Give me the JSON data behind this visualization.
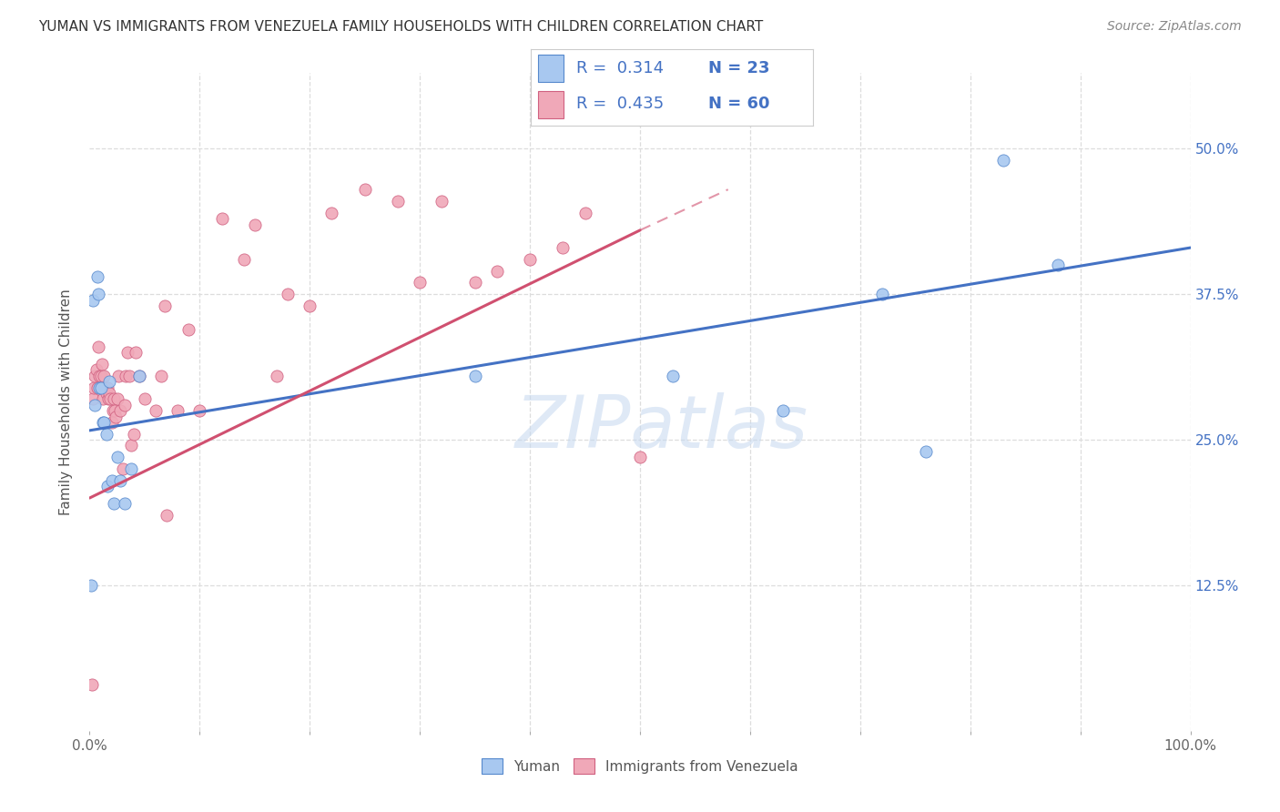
{
  "title": "YUMAN VS IMMIGRANTS FROM VENEZUELA FAMILY HOUSEHOLDS WITH CHILDREN CORRELATION CHART",
  "source": "Source: ZipAtlas.com",
  "ylabel": "Family Households with Children",
  "ytick_values": [
    0.0,
    0.125,
    0.25,
    0.375,
    0.5
  ],
  "ytick_labels_right": [
    "",
    "12.5%",
    "25.0%",
    "37.5%",
    "50.0%"
  ],
  "xlim": [
    0.0,
    1.0
  ],
  "ylim": [
    0.0,
    0.565
  ],
  "color_blue_fill": "#A8C8F0",
  "color_blue_edge": "#5588CC",
  "color_pink_fill": "#F0A8B8",
  "color_pink_edge": "#D06080",
  "color_trendline_blue": "#4472C4",
  "color_trendline_pink": "#D05070",
  "watermark": "ZIPatlas",
  "legend_label_yuman": "Yuman",
  "legend_label_venezuela": "Immigrants from Venezuela",
  "blue_points_x": [
    0.001,
    0.003,
    0.005,
    0.007,
    0.008,
    0.009,
    0.01,
    0.012,
    0.013,
    0.015,
    0.016,
    0.018,
    0.02,
    0.022,
    0.025,
    0.028,
    0.032,
    0.038,
    0.045,
    0.35,
    0.53,
    0.63,
    0.72,
    0.76,
    0.83,
    0.88
  ],
  "blue_points_y": [
    0.125,
    0.37,
    0.28,
    0.39,
    0.375,
    0.295,
    0.295,
    0.265,
    0.265,
    0.255,
    0.21,
    0.3,
    0.215,
    0.195,
    0.235,
    0.215,
    0.195,
    0.225,
    0.305,
    0.305,
    0.305,
    0.275,
    0.375,
    0.24,
    0.49,
    0.4
  ],
  "pink_points_x": [
    0.002,
    0.003,
    0.004,
    0.005,
    0.006,
    0.007,
    0.008,
    0.009,
    0.01,
    0.011,
    0.012,
    0.013,
    0.014,
    0.015,
    0.016,
    0.017,
    0.018,
    0.019,
    0.02,
    0.021,
    0.022,
    0.023,
    0.024,
    0.025,
    0.026,
    0.028,
    0.03,
    0.032,
    0.033,
    0.034,
    0.036,
    0.038,
    0.04,
    0.042,
    0.045,
    0.05,
    0.06,
    0.065,
    0.068,
    0.07,
    0.08,
    0.09,
    0.1,
    0.12,
    0.14,
    0.15,
    0.17,
    0.18,
    0.2,
    0.22,
    0.25,
    0.28,
    0.3,
    0.32,
    0.35,
    0.37,
    0.4,
    0.43,
    0.45,
    0.5
  ],
  "pink_points_y": [
    0.04,
    0.285,
    0.295,
    0.305,
    0.31,
    0.295,
    0.33,
    0.305,
    0.305,
    0.315,
    0.285,
    0.305,
    0.295,
    0.29,
    0.295,
    0.285,
    0.29,
    0.285,
    0.265,
    0.275,
    0.285,
    0.275,
    0.27,
    0.285,
    0.305,
    0.275,
    0.225,
    0.28,
    0.305,
    0.325,
    0.305,
    0.245,
    0.255,
    0.325,
    0.305,
    0.285,
    0.275,
    0.305,
    0.365,
    0.185,
    0.275,
    0.345,
    0.275,
    0.44,
    0.405,
    0.435,
    0.305,
    0.375,
    0.365,
    0.445,
    0.465,
    0.455,
    0.385,
    0.455,
    0.385,
    0.395,
    0.405,
    0.415,
    0.445,
    0.235
  ],
  "blue_trend_x0": 0.0,
  "blue_trend_y0": 0.258,
  "blue_trend_x1": 1.0,
  "blue_trend_y1": 0.415,
  "pink_trend_x0": 0.0,
  "pink_trend_y0": 0.2,
  "pink_trend_x1": 0.5,
  "pink_trend_y1": 0.43,
  "pink_trend_ext_x1": 0.58,
  "pink_trend_ext_y1": 0.465
}
